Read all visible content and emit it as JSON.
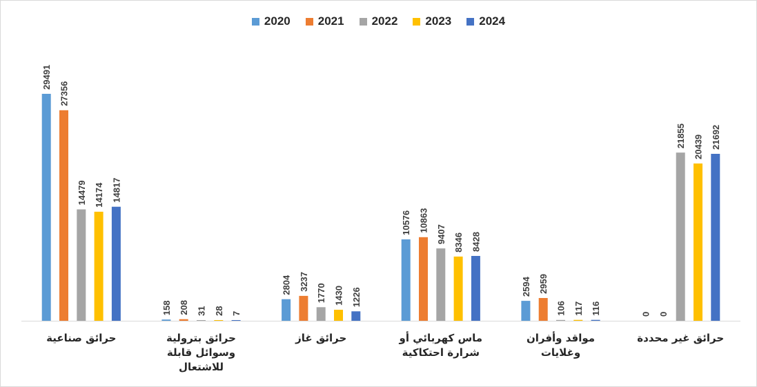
{
  "chart_data": {
    "type": "bar",
    "categories": [
      "حرائق صناعية",
      "حرائق بترولية وسوائل قابلة للاشتعال",
      "حرائق غاز",
      "ماس كهربائي أو شرارة احتكاكية",
      "مواقد وأفران وغلايات",
      "حرائق غير محددة"
    ],
    "category_lines": [
      [
        "حرائق صناعية"
      ],
      [
        "حرائق بترولية",
        "وسوائل قابلة",
        "للاشتعال"
      ],
      [
        "حرائق غاز"
      ],
      [
        "ماس كهربائي أو",
        "شرارة احتكاكية"
      ],
      [
        "مواقد وأفران",
        "وغلايات"
      ],
      [
        "حرائق غير محددة"
      ]
    ],
    "series": [
      {
        "name": "2020",
        "color": "#5B9BD5",
        "values": [
          29491,
          158,
          2804,
          10576,
          2594,
          0
        ]
      },
      {
        "name": "2021",
        "color": "#ED7D31",
        "values": [
          27356,
          208,
          3237,
          10863,
          2959,
          0
        ]
      },
      {
        "name": "2022",
        "color": "#A5A5A5",
        "values": [
          14479,
          31,
          1770,
          9407,
          106,
          21855
        ]
      },
      {
        "name": "2023",
        "color": "#FFC000",
        "values": [
          14174,
          28,
          1430,
          8346,
          117,
          20439
        ]
      },
      {
        "name": "2024",
        "color": "#4472C4",
        "values": [
          14817,
          7,
          1226,
          8428,
          116,
          21692
        ]
      }
    ],
    "ylim": [
      0,
      30000
    ],
    "legend_position": "top",
    "grid": false,
    "data_labels": true
  }
}
